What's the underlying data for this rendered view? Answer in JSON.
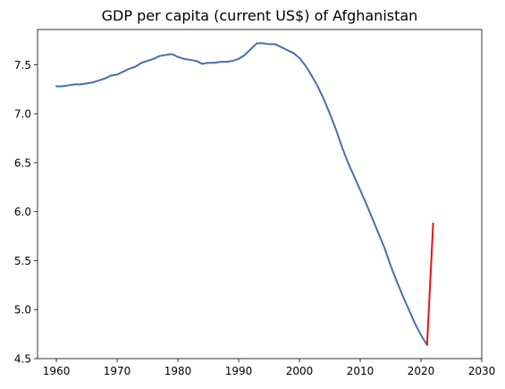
{
  "chart_data": {
    "type": "line",
    "title": "GDP per capita (current US$) of Afghanistan",
    "xlabel": "",
    "ylabel": "",
    "xlim": [
      1956.9,
      2030
    ],
    "ylim": [
      4.5,
      7.86
    ],
    "x_ticks": [
      1960,
      1970,
      1980,
      1990,
      2000,
      2010,
      2020,
      2030
    ],
    "y_ticks": [
      4.5,
      5.0,
      5.5,
      6.0,
      6.5,
      7.0,
      7.5
    ],
    "x_tick_labels": [
      "1960",
      "1970",
      "1980",
      "1990",
      "2000",
      "2010",
      "2020",
      "2030"
    ],
    "y_tick_labels": [
      "4.5",
      "5.0",
      "5.5",
      "6.0",
      "6.5",
      "7.0",
      "7.5"
    ],
    "grid": false,
    "series": [
      {
        "color": "#4a6fa5",
        "x": [
          1960,
          1961,
          1962,
          1963,
          1964,
          1965,
          1966,
          1967,
          1968,
          1969,
          1970,
          1971,
          1972,
          1973,
          1974,
          1975,
          1976,
          1977,
          1978,
          1979,
          1980,
          1981,
          1982,
          1983,
          1984,
          1985,
          1986,
          1987,
          1988,
          1989,
          1990,
          1991,
          1992,
          1993,
          1994,
          1995,
          1996,
          1997,
          1998,
          1999,
          2000,
          2001,
          2002,
          2003,
          2004,
          2005,
          2006,
          2007,
          2008,
          2009,
          2010,
          2011,
          2012,
          2013,
          2014,
          2015,
          2016,
          2017,
          2018,
          2019,
          2020,
          2021
        ],
        "values": [
          7.28,
          7.28,
          7.29,
          7.3,
          7.3,
          7.31,
          7.32,
          7.34,
          7.36,
          7.39,
          7.4,
          7.43,
          7.46,
          7.48,
          7.52,
          7.54,
          7.56,
          7.59,
          7.6,
          7.61,
          7.58,
          7.56,
          7.55,
          7.54,
          7.51,
          7.52,
          7.52,
          7.53,
          7.53,
          7.54,
          7.56,
          7.6,
          7.66,
          7.72,
          7.72,
          7.71,
          7.71,
          7.68,
          7.65,
          7.62,
          7.57,
          7.49,
          7.39,
          7.28,
          7.15,
          7.0,
          6.84,
          6.66,
          6.5,
          6.36,
          6.22,
          6.08,
          5.93,
          5.78,
          5.63,
          5.45,
          5.29,
          5.14,
          5.0,
          4.86,
          4.74,
          4.64
        ]
      },
      {
        "color": "#e8141a",
        "x": [
          2021,
          2022
        ],
        "values": [
          4.64,
          5.88
        ]
      }
    ]
  }
}
